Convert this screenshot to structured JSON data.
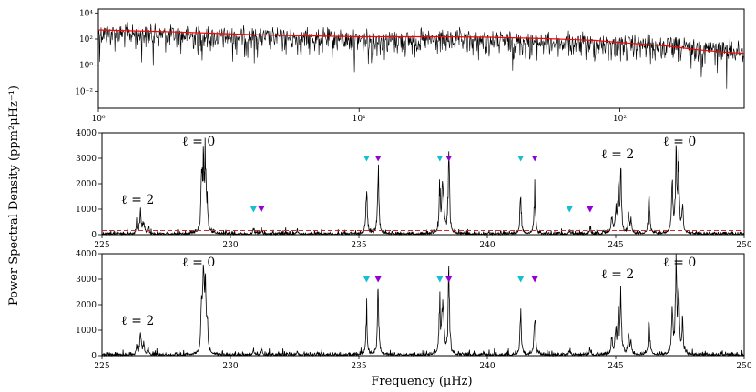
{
  "figure": {
    "ylabel": "Power Spectral Density (ppm²μHz⁻¹)",
    "xlabel": "Frequency (μHz)"
  },
  "chart_data": [
    {
      "type": "line",
      "panel": "top",
      "xscale": "log",
      "yscale": "log",
      "xlim": [
        1,
        300
      ],
      "ylim": [
        0.0005,
        20000
      ],
      "x_ticks": [
        {
          "value": 1,
          "label": "10⁰"
        },
        {
          "value": 10,
          "label": "10¹"
        },
        {
          "value": 100,
          "label": "10²"
        }
      ],
      "y_ticks": [
        {
          "value": 0.01,
          "label": "10⁻²"
        },
        {
          "value": 1,
          "label": "10⁰"
        },
        {
          "value": 100,
          "label": "10²"
        },
        {
          "value": 10000,
          "label": "10⁴"
        }
      ],
      "series": [
        {
          "color": "#000000",
          "description_points": {
            "x": [
              1,
              3,
              10,
              30,
              100,
              200,
              300
            ],
            "y": [
              500,
              250,
              150,
              120,
              60,
              30,
              20
            ]
          }
        },
        {
          "color": "#ff0000",
          "x": [
            1,
            2,
            3,
            5,
            10,
            20,
            30,
            50,
            80,
            100,
            150,
            200,
            250,
            300
          ],
          "y": [
            500,
            350,
            260,
            190,
            150,
            150,
            140,
            110,
            80,
            55,
            30,
            15,
            10,
            8
          ]
        }
      ]
    },
    {
      "type": "line",
      "panel": "middle",
      "xlim": [
        225,
        250
      ],
      "ylim": [
        0,
        4000
      ],
      "x_ticks": [
        225,
        230,
        235,
        240,
        245,
        250
      ],
      "y_ticks": [
        0,
        1000,
        2000,
        3000,
        4000
      ],
      "threshold": {
        "y": 160,
        "color": "#d62728",
        "style": "dashed"
      },
      "peaks": [
        [
          226.5,
          1050
        ],
        [
          226.62,
          600
        ],
        [
          226.35,
          400
        ],
        [
          226.8,
          350
        ],
        [
          228.95,
          3350
        ],
        [
          229.02,
          3300
        ],
        [
          228.88,
          2500
        ],
        [
          229.1,
          1300
        ],
        [
          230.9,
          280
        ],
        [
          231.2,
          300
        ],
        [
          232.6,
          200
        ],
        [
          235.3,
          2300
        ],
        [
          235.75,
          3500
        ],
        [
          238.15,
          2300
        ],
        [
          238.25,
          2000
        ],
        [
          238.3,
          1500
        ],
        [
          238.5,
          4000
        ],
        [
          241.3,
          2000
        ],
        [
          241.85,
          2200
        ],
        [
          243.2,
          200
        ],
        [
          244.0,
          250
        ],
        [
          244.85,
          900
        ],
        [
          245.0,
          1200
        ],
        [
          245.2,
          2800
        ],
        [
          245.1,
          1900
        ],
        [
          245.5,
          950
        ],
        [
          245.6,
          600
        ],
        [
          246.3,
          2000
        ],
        [
          247.2,
          2800
        ],
        [
          247.35,
          4000
        ],
        [
          247.45,
          3300
        ],
        [
          247.6,
          1500
        ]
      ],
      "markers": {
        "cyan": [
          235.3,
          238.15,
          241.3,
          243.2,
          230.9
        ],
        "magenta": [
          235.75,
          238.5,
          241.85,
          244.0,
          231.2
        ]
      },
      "marker_y": [
        3000,
        3000,
        3000,
        1000,
        1000
      ]
    },
    {
      "type": "line",
      "panel": "bottom",
      "xlim": [
        225,
        250
      ],
      "ylim": [
        0,
        4000
      ],
      "x_ticks": [
        225,
        230,
        235,
        240,
        245,
        250
      ],
      "y_ticks": [
        0,
        1000,
        2000,
        3000,
        4000
      ],
      "markers": {
        "cyan": [
          235.3,
          238.15,
          241.3
        ],
        "magenta": [
          235.75,
          238.5,
          241.85
        ]
      }
    }
  ],
  "annotations": {
    "l0_left": "ℓ = 0",
    "l0_right": "ℓ = 0",
    "l2_left": "ℓ = 2",
    "l2_right": "ℓ = 2"
  },
  "colors": {
    "cyan": "#17becf",
    "magenta": "#9400d3",
    "red": "#ff0000"
  }
}
